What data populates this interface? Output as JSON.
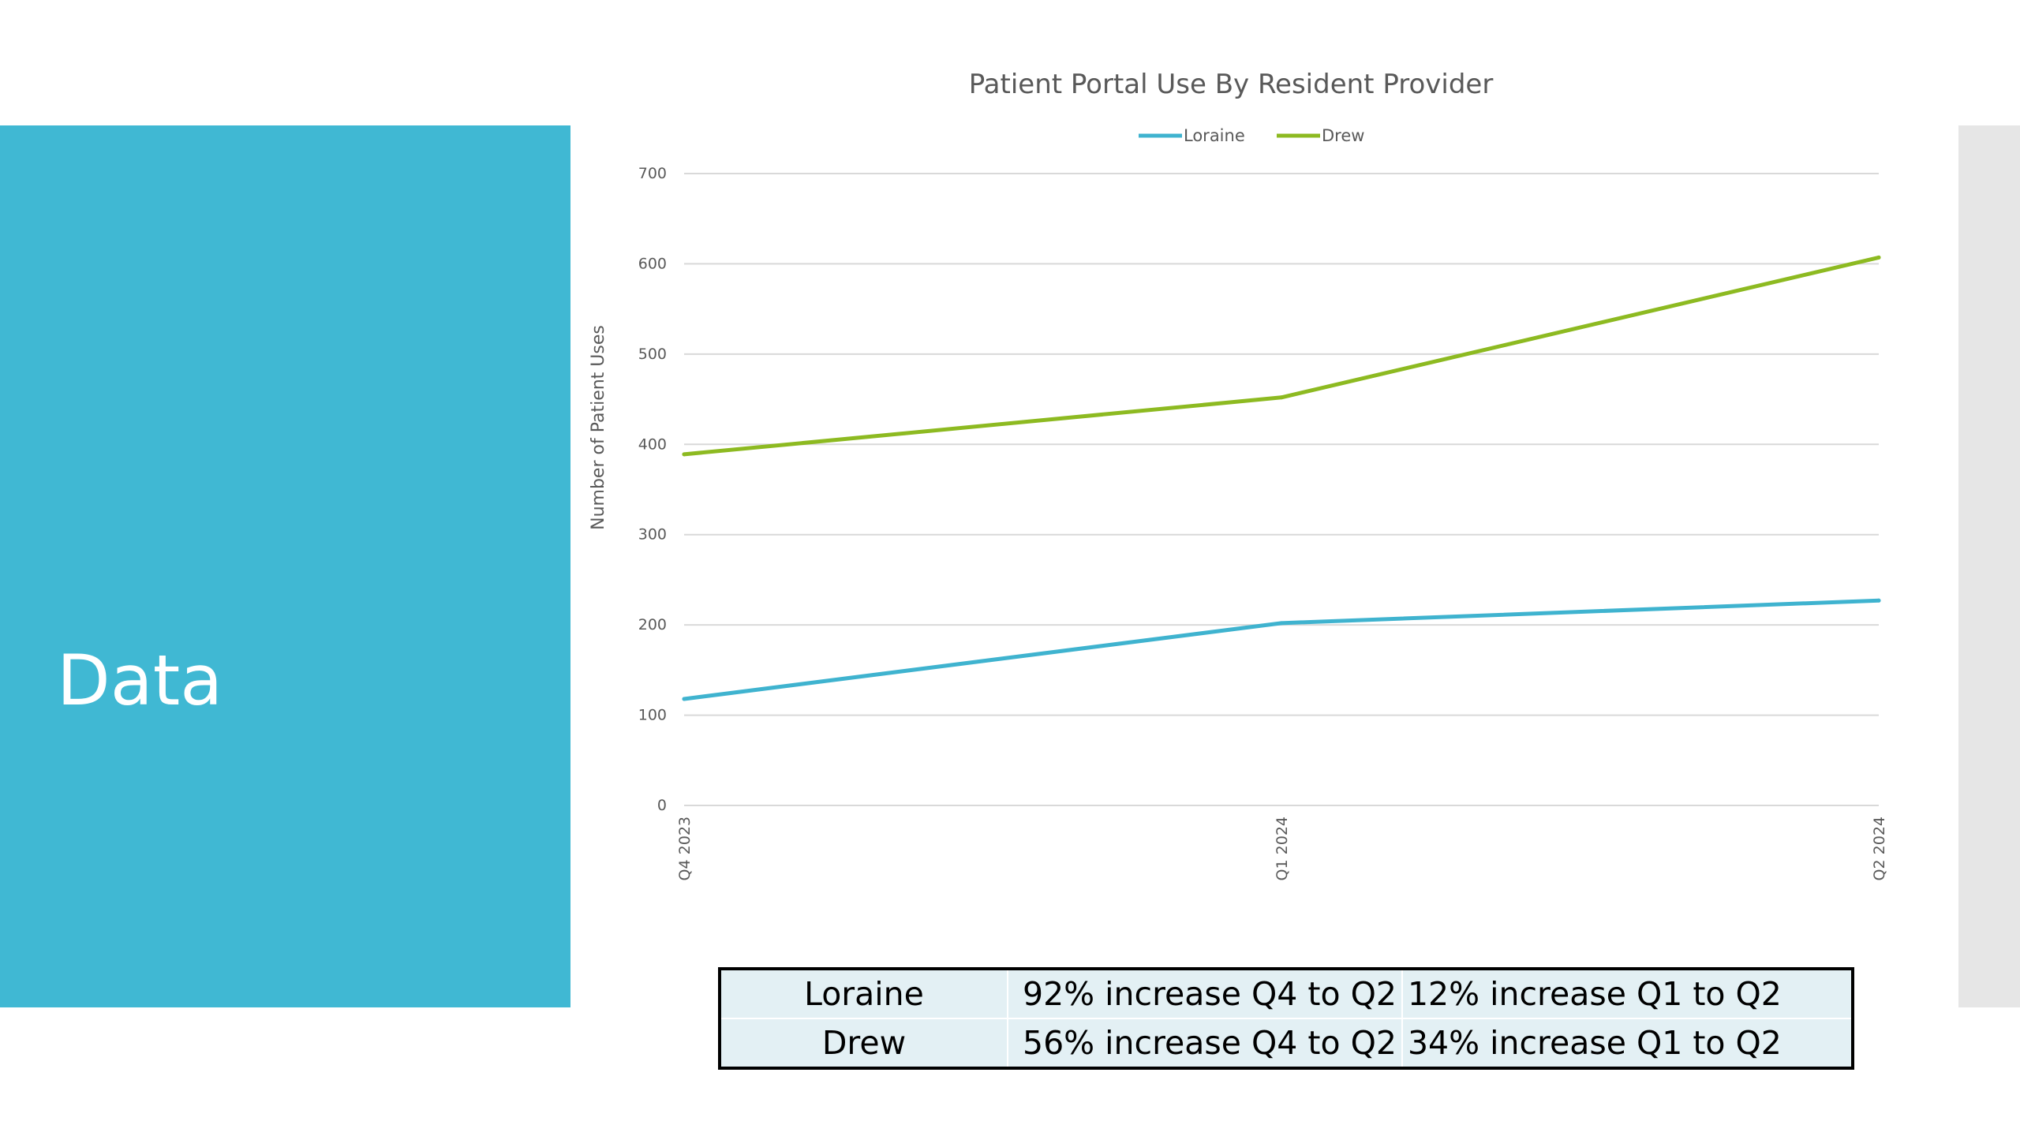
{
  "slide": {
    "title": "Data"
  },
  "colors": {
    "panel": "#40b8d3",
    "loraine": "#3fb3cf",
    "drew": "#8dba21",
    "grid": "#d9d9d9",
    "strip": "#e6e6e6"
  },
  "chart_data": {
    "type": "line",
    "title": "Patient Portal Use By Resident Provider",
    "xlabel": "",
    "ylabel": "Number of Patient Uses",
    "categories": [
      "Q4 2023",
      "Q1 2024",
      "Q2 2024"
    ],
    "series": [
      {
        "name": "Loraine",
        "values": [
          118,
          202,
          227
        ]
      },
      {
        "name": "Drew",
        "values": [
          389,
          452,
          607
        ]
      }
    ],
    "ylim": [
      0,
      700
    ],
    "yticks": [
      0,
      100,
      200,
      300,
      400,
      500,
      600,
      700
    ],
    "grid": true,
    "legend": "top"
  },
  "summary_table": {
    "rows": [
      {
        "name": "Loraine",
        "q4_to_q2": "92% increase Q4 to Q2",
        "q1_to_q2": "12% increase Q1 to Q2"
      },
      {
        "name": "Drew",
        "q4_to_q2": "56% increase Q4 to Q2",
        "q1_to_q2": "34% increase Q1 to Q2"
      }
    ]
  }
}
